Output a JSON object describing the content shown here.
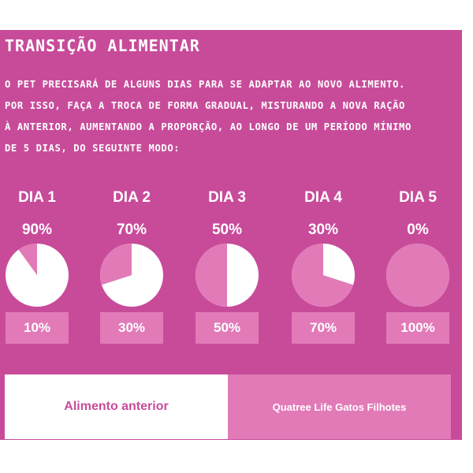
{
  "title": "TRANSIÇÃO ALIMENTAR",
  "intro": {
    "line1": "O PET PRECISARÁ DE ALGUNS DIAS PARA SE ADAPTAR AO NOVO ALIMENTO.",
    "line2": "POR ISSO, FAÇA A TROCA DE FORMA GRADUAL, MISTURANDO A NOVA RAÇÃO",
    "line3": "À ANTERIOR, AUMENTANDO A PROPORÇÃO, AO LONGO DE UM PERÍODO MÍNIMO",
    "line4": "DE 5 DIAS, DO SEGUINTE MODO:"
  },
  "days": [
    {
      "label": "DIA 1",
      "old_pct": "90%",
      "new_pct": "10%",
      "new_fraction": 0.1
    },
    {
      "label": "DIA 2",
      "old_pct": "70%",
      "new_pct": "30%",
      "new_fraction": 0.3
    },
    {
      "label": "DIA 3",
      "old_pct": "50%",
      "new_pct": "50%",
      "new_fraction": 0.5
    },
    {
      "label": "DIA 4",
      "old_pct": "30%",
      "new_pct": "70%",
      "new_fraction": 0.7
    },
    {
      "label": "DIA 5",
      "old_pct": "0%",
      "new_pct": "100%",
      "new_fraction": 1.0
    }
  ],
  "legend": {
    "old_label": "Alimento anterior",
    "new_label": "Quatree Life Gatos Filhotes"
  },
  "colors": {
    "background": "#c84b9a",
    "old_food": "#ffffff",
    "new_food": "#e27ab8"
  }
}
